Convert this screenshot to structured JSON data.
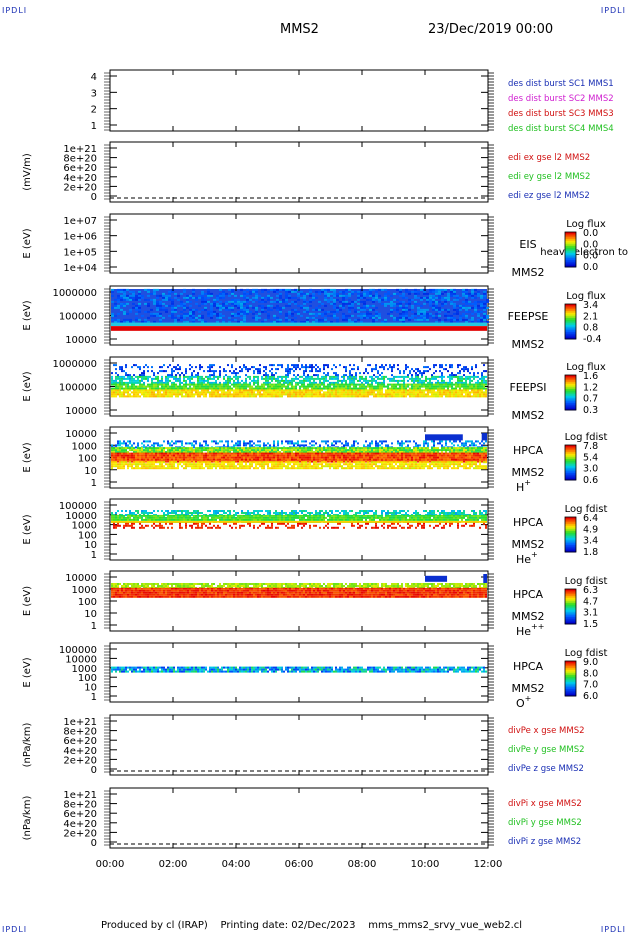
{
  "header": {
    "corner_label": "IPDLI",
    "spacecraft": "MMS2",
    "date": "23/Dec/2019 00:00"
  },
  "footer": {
    "produced_by": "Produced by cl (IRAP)",
    "printing_date": "Printing date: 02/Dec/2023",
    "script": "mms_mms2_srvy_vue_web2.cl"
  },
  "chart_data": {
    "type": "heatmap",
    "x_ticks": [
      "00:00",
      "02:00",
      "04:00",
      "06:00",
      "08:00",
      "10:00",
      "12:00"
    ],
    "xlim_hours": [
      0,
      12
    ],
    "panels": [
      {
        "id": "des_dist",
        "type": "line",
        "ylabel": "",
        "yticks": [
          "1",
          "2",
          "3",
          "4"
        ],
        "ylim": [
          0.5,
          4.5
        ],
        "legend": [
          {
            "text": "des dist burst SC1 MMS1",
            "color": "#1a2fb4"
          },
          {
            "text": "des dist burst SC2 MMS2",
            "color": "#d020d0"
          },
          {
            "text": "des dist burst SC3 MMS3",
            "color": "#d01010"
          },
          {
            "text": "des dist burst SC4 MMS4",
            "color": "#20c020"
          }
        ]
      },
      {
        "id": "edi_e",
        "type": "line",
        "ylabel": "(mV/m)",
        "yticks": [
          "0",
          "2e+20",
          "4e+20",
          "6e+20",
          "8e+20",
          "1e+21"
        ],
        "ylim": [
          0,
          1e+21
        ],
        "dashed_zero": true,
        "legend": [
          {
            "text": "edi ex gse l2 MMS2",
            "color": "#d01010"
          },
          {
            "text": "edi ey gse l2 MMS2",
            "color": "#20c020"
          },
          {
            "text": "edi ez gse l2 MMS2",
            "color": "#1a2fb4"
          }
        ]
      },
      {
        "id": "eis",
        "type": "heatmap",
        "ylabel": "E (eV)",
        "yticks": [
          "1e+04",
          "1e+05",
          "1e+06",
          "1e+07"
        ],
        "right_labels": [
          "EIS",
          "MMS2"
        ],
        "overlay_text": "heavy electron to",
        "colorbar": {
          "title": "Log flux",
          "ticks": [
            "0.0",
            "0.0",
            "0.0",
            "0.0"
          ]
        }
      },
      {
        "id": "feeps_e",
        "type": "heatmap",
        "ylabel": "E (eV)",
        "yticks": [
          "10000",
          "100000",
          "1000000"
        ],
        "right_labels": [
          "FEEPSE",
          "MMS2"
        ],
        "colorbar": {
          "title": "Log flux",
          "ticks": [
            "3.4",
            "2.1",
            "0.8",
            "-0.4"
          ]
        }
      },
      {
        "id": "feeps_i",
        "type": "heatmap",
        "ylabel": "E (eV)",
        "yticks": [
          "10000",
          "100000",
          "1000000"
        ],
        "right_labels": [
          "FEEPSI",
          "MMS2"
        ],
        "colorbar": {
          "title": "Log flux",
          "ticks": [
            "1.6",
            "1.2",
            "0.7",
            "0.3"
          ]
        }
      },
      {
        "id": "hpca_h",
        "type": "heatmap",
        "ylabel": "E (eV)",
        "yticks": [
          "1",
          "10",
          "100",
          "1000",
          "10000"
        ],
        "right_labels": [
          "HPCA",
          "MMS2"
        ],
        "species": "H",
        "species_charge": "+",
        "colorbar": {
          "title": "Log fdist",
          "ticks": [
            "7.8",
            "5.4",
            "3.0",
            "0.6"
          ]
        }
      },
      {
        "id": "hpca_he1",
        "type": "heatmap",
        "ylabel": "E (eV)",
        "yticks": [
          "1",
          "10",
          "100",
          "1000",
          "10000",
          "100000"
        ],
        "right_labels": [
          "HPCA",
          "MMS2"
        ],
        "species": "He",
        "species_charge": "+",
        "colorbar": {
          "title": "Log fdist",
          "ticks": [
            "6.4",
            "4.9",
            "3.4",
            "1.8"
          ]
        }
      },
      {
        "id": "hpca_he2",
        "type": "heatmap",
        "ylabel": "E (eV)",
        "yticks": [
          "1",
          "10",
          "100",
          "1000",
          "10000"
        ],
        "right_labels": [
          "HPCA",
          "MMS2"
        ],
        "species": "He",
        "species_charge": "++",
        "colorbar": {
          "title": "Log fdist",
          "ticks": [
            "6.3",
            "4.7",
            "3.1",
            "1.5"
          ]
        }
      },
      {
        "id": "hpca_o",
        "type": "heatmap",
        "ylabel": "E (eV)",
        "yticks": [
          "1",
          "10",
          "100",
          "1000",
          "10000",
          "100000"
        ],
        "right_labels": [
          "HPCA",
          "MMS2"
        ],
        "species": "O",
        "species_charge": "+",
        "colorbar": {
          "title": "Log fdist",
          "ticks": [
            "9.0",
            "8.0",
            "7.0",
            "6.0"
          ]
        }
      },
      {
        "id": "divpe",
        "type": "line",
        "ylabel": "(nPa/km)",
        "yticks": [
          "0",
          "2e+20",
          "4e+20",
          "6e+20",
          "8e+20",
          "1e+21"
        ],
        "ylim": [
          0,
          1e+21
        ],
        "dashed_zero": true,
        "legend": [
          {
            "text": "divPe x gse MMS2",
            "color": "#d01010"
          },
          {
            "text": "divPe y gse MMS2",
            "color": "#20c020"
          },
          {
            "text": "divPe z gse MMS2",
            "color": "#1a2fb4"
          }
        ]
      },
      {
        "id": "divpi",
        "type": "line",
        "ylabel": "(nPa/km)",
        "yticks": [
          "0",
          "2e+20",
          "4e+20",
          "6e+20",
          "8e+20",
          "1e+21"
        ],
        "ylim": [
          0,
          1e+21
        ],
        "dashed_zero": true,
        "legend": [
          {
            "text": "divPi x gse MMS2",
            "color": "#d01010"
          },
          {
            "text": "divPi y gse MMS2",
            "color": "#20c020"
          },
          {
            "text": "divPi z gse MMS2",
            "color": "#1a2fb4"
          }
        ]
      }
    ]
  }
}
